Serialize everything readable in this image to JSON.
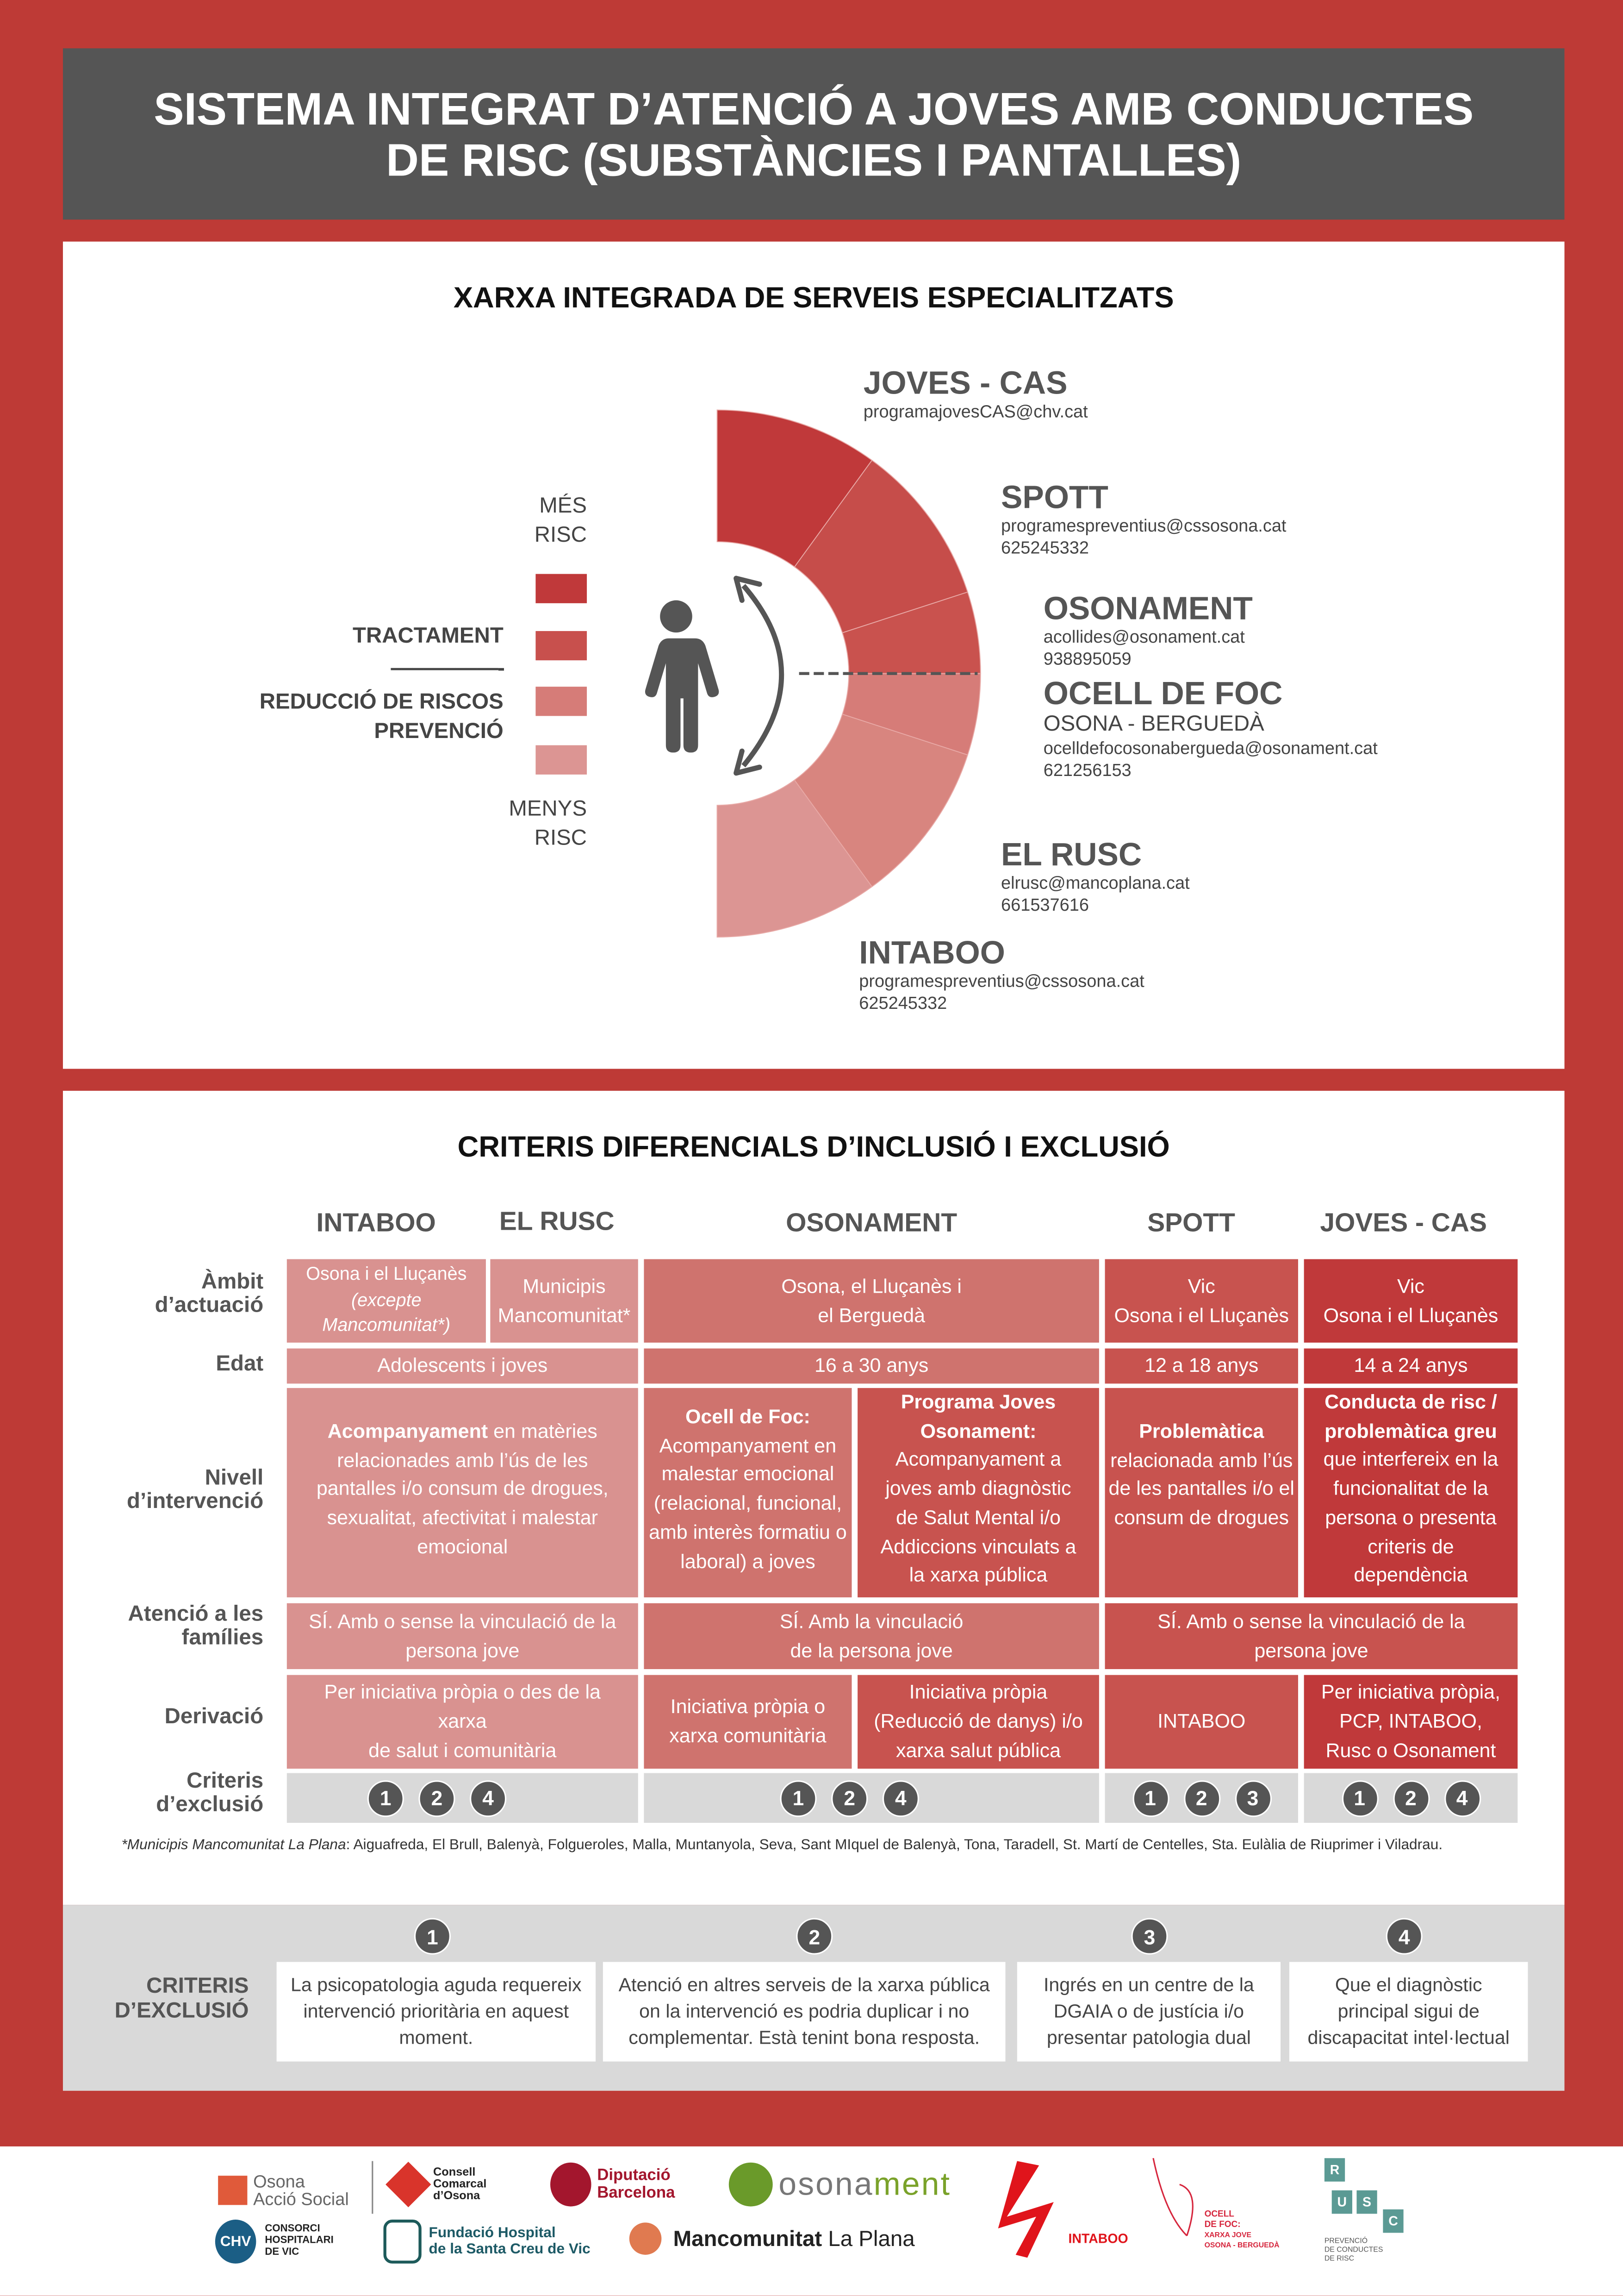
{
  "title": {
    "line1": "SISTEMA INTEGRAT D’ATENCIÓ A JOVES AMB CONDUCTES",
    "line2": "DE RISC (SUBSTÀNCIES I PANTALLES)"
  },
  "network": {
    "heading": "XARXA INTEGRADA DE SERVEIS ESPECIALITZATS",
    "legend": {
      "more_risk": [
        "MÉS",
        "RISC"
      ],
      "treatment": "TRACTAMENT",
      "dashes": "––––––––––-",
      "harm_reduction": "REDUCCIÓ DE RISCOS",
      "prevention": "PREVENCIÓ",
      "less_risk": [
        "MENYS",
        "RISC"
      ],
      "colors": [
        "#c0393a",
        "#c8504d",
        "#d67c78",
        "#dc9593"
      ]
    },
    "icons": {
      "person": "person-icon",
      "arrow": "curved-double-arrow-icon"
    },
    "services": [
      {
        "name": "JOVES - CAS",
        "lines": [
          "programajovesCAS@chv.cat"
        ],
        "color": "#c0393a"
      },
      {
        "name": "SPOTT",
        "lines": [
          "programespreventius@cssosona.cat",
          "625245332"
        ],
        "color": "#c64d4a"
      },
      {
        "name": "OSONAMENT",
        "lines": [
          "acollides@osonament.cat",
          "938895059"
        ],
        "color": "#c9524e"
      },
      {
        "name": "OCELL DE FOC",
        "subtitle": "OSONA - BERGUEDÀ",
        "lines": [
          "ocelldefocosonabergueda@osonament.cat",
          "621256153"
        ],
        "color": "#d67c78"
      },
      {
        "name": "EL RUSC",
        "lines": [
          "elrusc@mancoplana.cat",
          "661537616"
        ],
        "color": "#d8857f"
      },
      {
        "name": "INTABOO",
        "lines": [
          "programespreventius@cssosona.cat",
          "625245332"
        ],
        "color": "#dc9593"
      }
    ]
  },
  "criteria": {
    "heading": "CRITERIS DIFERENCIALS D’INCLUSIÓ I EXCLUSIÓ",
    "columns": [
      "INTABOO",
      "EL RUSC",
      "OSONAMENT",
      "SPOTT",
      "JOVES - CAS"
    ],
    "rows": [
      "Àmbit d’actuació",
      "Edat",
      "Nivell d’intervenció",
      "Atenció a les famílies",
      "Derivació",
      "Criteris d’exclusió"
    ],
    "row_lines": [
      [
        "Àmbit",
        "d’actuació"
      ],
      [
        "Edat"
      ],
      [
        "Nivell",
        "d’intervenció"
      ],
      [
        "Atenció a les",
        "famílies"
      ],
      [
        "Derivació"
      ],
      [
        "Criteris",
        "d’exclusió"
      ]
    ],
    "colors": {
      "intaboo_rusc": "#d99290",
      "osonament": "#cf736e",
      "spott": "#c8534f",
      "joves": "#c0393a"
    },
    "ambit": {
      "intaboo": [
        "Osona i el Lluçanès",
        "(excepte",
        "Mancomunitat*)"
      ],
      "rusc": [
        "Municipis",
        "Mancomunitat*"
      ],
      "osonament": [
        "Osona, el Lluçanès i",
        "el Berguedà"
      ],
      "spott": [
        "Vic",
        "Osona i el Lluçanès"
      ],
      "joves": [
        "Vic",
        "Osona i el Lluçanès"
      ]
    },
    "edat": {
      "intaboo_rusc": "Adolescents i joves",
      "osonament": "16 a 30 anys",
      "spott": "12 a 18 anys",
      "joves": "14 a 24 anys"
    },
    "nivell": {
      "intaboo_rusc": {
        "bold": "Acompanyament",
        "text": " en matèries relacionades amb l’ús de les pantalles i/o consum de drogues, sexualitat, afectivitat i malestar emocional"
      },
      "ocell": {
        "bold": "Ocell de Foc:",
        "text": "Acompanyament en malestar emocional (relacional, funcional, amb interès formatiu o laboral) a joves"
      },
      "programa": {
        "bold": "Programa Joves Osonament:",
        "text": "Acompanyament a joves amb diagnòstic de Salut Mental i/o Addiccions vinculats a la xarxa pública"
      },
      "spott": {
        "bold": "Problemàtica",
        "text": "relacionada amb l’ús de les pantalles i/o el consum de drogues"
      },
      "joves": {
        "bold": "Conducta de risc / problemàtica greu",
        "text": "que interfereix en la funcionalitat de la persona o presenta criteris de dependència"
      }
    },
    "atencio": {
      "intaboo_rusc": [
        "SÍ. Amb o sense la vinculació de la",
        "persona jove"
      ],
      "osonament": [
        "SÍ. Amb la vinculació",
        "de la persona jove"
      ],
      "spott_joves": [
        "SÍ. Amb o sense la vinculació de la",
        "persona jove"
      ]
    },
    "derivacio": {
      "intaboo_rusc": [
        "Per iniciativa pròpia o des de la",
        "xarxa",
        "de salut i comunitària"
      ],
      "ocell": [
        "Iniciativa pròpia o",
        "xarxa comunitària"
      ],
      "programa": [
        "Iniciativa pròpia",
        "(Reducció de danys) i/o",
        "xarxa salut pública"
      ],
      "spott": [
        "INTABOO"
      ],
      "joves": [
        "Per iniciativa pròpia,",
        "PCP, INTABOO,",
        "Rusc o Osonament"
      ]
    },
    "exclusio": {
      "intaboo_rusc": [
        "1",
        "2",
        "4"
      ],
      "osonament": [
        "1",
        "2",
        "4"
      ],
      "spott": [
        "1",
        "2",
        "3"
      ],
      "joves": [
        "1",
        "2",
        "4"
      ]
    },
    "footnote_label": "*Municipis Mancomunitat La Plana",
    "footnote_text": ": Aiguafreda, El Brull, Balenyà, Folgueroles, Malla, Muntanyola, Seva, Sant MIquel de Balenyà, Tona, Taradell, St. Martí de Centelles, Sta. Eulàlia de Riuprimer i Viladrau."
  },
  "exclusion": {
    "label": [
      "CRITERIS",
      "D’EXCLUSIÓ"
    ],
    "items": [
      {
        "num": "1",
        "text": "La psicopatologia aguda requereix intervenció prioritària en aquest moment."
      },
      {
        "num": "2",
        "text": "Atenció en altres serveis de la xarxa pública on la intervenció es podria duplicar i no complementar. Està tenint bona resposta."
      },
      {
        "num": "3",
        "text": "Ingrés en un centre de la DGAIA o de justícia i/o presentar patologia dual"
      },
      {
        "num": "4",
        "text": "Que el diagnòstic principal sigui de discapacitat intel·lectual"
      }
    ]
  },
  "logos": {
    "osona_accio": [
      "Osona",
      "Acció Social"
    ],
    "consell": [
      "Consell",
      "Comarcal",
      "d’Osona"
    ],
    "diputacio": [
      "Diputació",
      "Barcelona"
    ],
    "osonament_a": "osona",
    "osonament_b": "ment",
    "chv_mark": "CHV",
    "chv": [
      "CONSORCI",
      "HOSPITALARI",
      "DE VIC"
    ],
    "fundacio": [
      "Fundació Hospital",
      "de la Santa Creu de Vic"
    ],
    "mancomunitat_a": "Mancomunitat",
    "mancomunitat_b": " La Plana",
    "intaboo": "INTABOO",
    "ocell": [
      "OCELL",
      "DE FOC:",
      "XARXA JOVE",
      "OSONA - BERGUEDÀ"
    ],
    "rusc_letters": [
      "R",
      "U",
      "S",
      "C"
    ],
    "rusc": [
      "PREVENCIÓ",
      "DE CONDUCTES",
      "DE RISC"
    ]
  }
}
